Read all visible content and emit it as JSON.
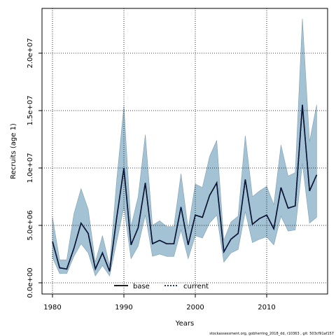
{
  "chart_data": {
    "type": "line",
    "x_label": "Years",
    "y_label": "Recruits (age 1)",
    "footnote": "stockassessment.org, gobherring_2018_dd, r10363 , git: 503cf91af157",
    "x": [
      1980,
      1981,
      1982,
      1983,
      1984,
      1985,
      1986,
      1987,
      1988,
      1989,
      1990,
      1991,
      1992,
      1993,
      1994,
      1995,
      1996,
      1997,
      1998,
      1999,
      2000,
      2001,
      2002,
      2003,
      2004,
      2005,
      2006,
      2007,
      2008,
      2009,
      2010,
      2011,
      2012,
      2013,
      2014,
      2015,
      2016,
      2017
    ],
    "band": {
      "color": "#a3c3d5",
      "upper": [
        5700000,
        2000000,
        2000000,
        6000000,
        8200000,
        6400000,
        1800000,
        4100000,
        1500000,
        9000000,
        15400000,
        4900000,
        7500000,
        12900000,
        5000000,
        5400000,
        4900000,
        4900000,
        9500000,
        4700000,
        8600000,
        8300000,
        11000000,
        12400000,
        3700000,
        5300000,
        5800000,
        12800000,
        7500000,
        8000000,
        8400000,
        6800000,
        12000000,
        9300000,
        9600000,
        23000000,
        12300000,
        15500000
      ],
      "lower": [
        2200000,
        800000,
        800000,
        2300000,
        3400000,
        2600000,
        600000,
        1500000,
        600000,
        3600000,
        6600000,
        2100000,
        3200000,
        5900000,
        2300000,
        2500000,
        2300000,
        2300000,
        4600000,
        2100000,
        4100000,
        3900000,
        5200000,
        5900000,
        1800000,
        2600000,
        2900000,
        6200000,
        3500000,
        3800000,
        4000000,
        3300000,
        5800000,
        4500000,
        4600000,
        10400000,
        5200000,
        5700000
      ]
    },
    "series": [
      {
        "name": "base",
        "color": "#000000",
        "dash": "solid",
        "values": [
          3600000,
          1300000,
          1200000,
          3000000,
          5200000,
          4300000,
          1200000,
          2600000,
          1000000,
          5700000,
          10000000,
          3300000,
          4800000,
          8700000,
          3400000,
          3700000,
          3400000,
          3400000,
          6600000,
          3300000,
          5900000,
          5700000,
          7600000,
          8700000,
          2700000,
          3800000,
          4300000,
          9000000,
          5100000,
          5600000,
          5900000,
          4700000,
          8300000,
          6500000,
          6700000,
          15500000,
          8000000,
          9400000
        ]
      },
      {
        "name": "current",
        "color": "#0a1f5c",
        "dash": "dotted",
        "values": [
          3600000,
          1300000,
          1200000,
          3000000,
          5200000,
          4300000,
          1200000,
          2600000,
          1000000,
          5700000,
          10000000,
          3300000,
          4800000,
          8700000,
          3400000,
          3700000,
          3400000,
          3400000,
          6600000,
          3300000,
          5900000,
          5700000,
          7600000,
          8700000,
          2700000,
          3800000,
          4300000,
          9000000,
          5100000,
          5600000,
          5900000,
          4700000,
          8300000,
          6500000,
          6700000,
          15500000,
          8000000,
          9400000
        ]
      }
    ],
    "xlim": [
      1978.53,
      2018.53
    ],
    "xticks": [
      1980,
      1990,
      2000,
      2010
    ],
    "ylim": [
      -976000,
      23900000
    ],
    "yticks": [
      {
        "value": 0,
        "label": "0.0e+00"
      },
      {
        "value": 5000000,
        "label": "5.0e+06"
      },
      {
        "value": 10000000,
        "label": "1.0e+07"
      },
      {
        "value": 15000000,
        "label": "1.5e+07"
      },
      {
        "value": 20000000,
        "label": "2.0e+07"
      }
    ],
    "grid": true,
    "legend": "bottom"
  }
}
